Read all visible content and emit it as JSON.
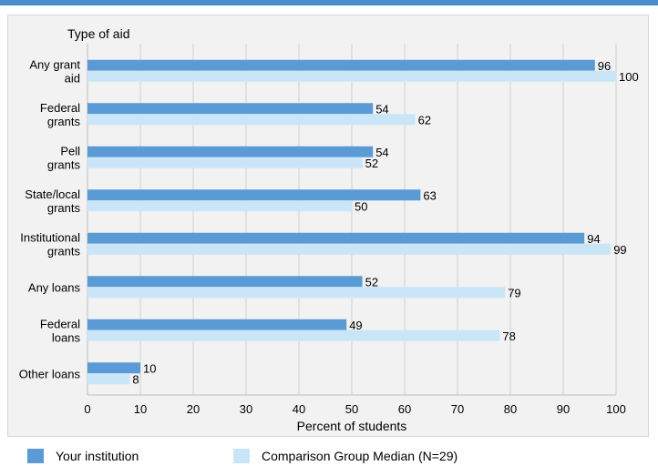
{
  "chart_data": {
    "type": "bar",
    "orientation": "horizontal",
    "ylabel": "Type of aid",
    "xlabel": "Percent of students",
    "xlim": [
      0,
      100
    ],
    "xticks": [
      0,
      10,
      20,
      30,
      40,
      50,
      60,
      70,
      80,
      90,
      100
    ],
    "grid": true,
    "categories": [
      [
        "Any grant",
        "aid"
      ],
      [
        "Federal",
        "grants"
      ],
      [
        "Pell",
        "grants"
      ],
      [
        "State/local",
        "grants"
      ],
      [
        "Institutional",
        "grants"
      ],
      [
        "Any loans"
      ],
      [
        "Federal",
        "loans"
      ],
      [
        "Other loans"
      ]
    ],
    "series": [
      {
        "name": "Your institution",
        "values": [
          96,
          54,
          54,
          63,
          94,
          52,
          49,
          10
        ],
        "color": "#5b9bd5"
      },
      {
        "name": "Comparison Group Median (N=29)",
        "values": [
          100,
          62,
          52,
          50,
          99,
          79,
          78,
          8
        ],
        "color": "#c9e5f7"
      }
    ],
    "legend_position": "bottom"
  }
}
